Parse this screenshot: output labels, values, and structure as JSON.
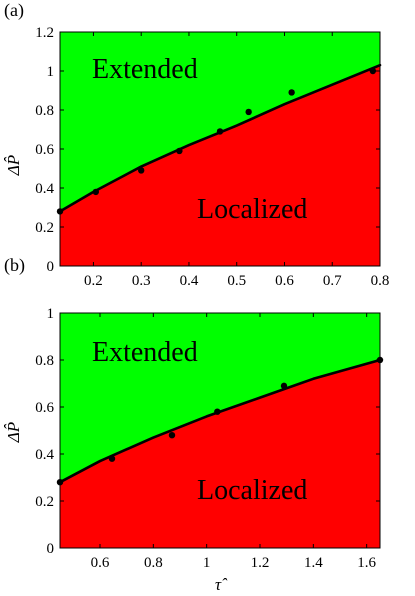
{
  "chart_data": [
    {
      "type": "area",
      "panel_label": "(a)",
      "xlim": [
        0.13,
        0.8
      ],
      "ylim": [
        0,
        1.2
      ],
      "x_ticks": [
        "0.2",
        "0.3",
        "0.4",
        "0.5",
        "0.6",
        "0.7",
        "0.8"
      ],
      "x_tick_values": [
        0.2,
        0.3,
        0.4,
        0.5,
        0.6,
        0.7,
        0.8
      ],
      "y_ticks": [
        "0",
        "0.2",
        "0.4",
        "0.6",
        "0.8",
        "1",
        "1.2"
      ],
      "y_tick_values": [
        0,
        0.2,
        0.4,
        0.6,
        0.8,
        1.0,
        1.2
      ],
      "xlabel": "",
      "ylabel": "ΔP̂",
      "regions": [
        {
          "label": "Extended",
          "color": "#00ff00"
        },
        {
          "label": "Localized",
          "color": "#ff0000"
        }
      ],
      "boundary_curve": {
        "x": [
          0.13,
          0.2,
          0.3,
          0.4,
          0.5,
          0.6,
          0.7,
          0.8
        ],
        "y": [
          0.28,
          0.38,
          0.51,
          0.62,
          0.72,
          0.83,
          0.93,
          1.03
        ]
      },
      "points": {
        "x": [
          0.13,
          0.205,
          0.3,
          0.38,
          0.465,
          0.525,
          0.615,
          0.785
        ],
        "y": [
          0.28,
          0.38,
          0.49,
          0.59,
          0.69,
          0.79,
          0.89,
          1.0
        ]
      },
      "grid": false
    },
    {
      "type": "area",
      "panel_label": "(b)",
      "xlim": [
        0.45,
        1.65
      ],
      "ylim": [
        0,
        1
      ],
      "x_ticks": [
        "0.6",
        "0.8",
        "1",
        "1.2",
        "1.4",
        "1.6"
      ],
      "x_tick_values": [
        0.6,
        0.8,
        1.0,
        1.2,
        1.4,
        1.6
      ],
      "y_ticks": [
        "0",
        "0.2",
        "0.4",
        "0.6",
        "0.8",
        "1"
      ],
      "y_tick_values": [
        0,
        0.2,
        0.4,
        0.6,
        0.8,
        1.0
      ],
      "xlabel": "τ̂",
      "ylabel": "ΔP̂",
      "regions": [
        {
          "label": "Extended",
          "color": "#00ff00"
        },
        {
          "label": "Localized",
          "color": "#ff0000"
        }
      ],
      "boundary_curve": {
        "x": [
          0.45,
          0.6,
          0.8,
          1.0,
          1.2,
          1.4,
          1.65
        ],
        "y": [
          0.28,
          0.37,
          0.47,
          0.56,
          0.64,
          0.72,
          0.8
        ]
      },
      "points": {
        "x": [
          0.45,
          0.645,
          0.87,
          1.04,
          1.29,
          1.65
        ],
        "y": [
          0.28,
          0.38,
          0.48,
          0.58,
          0.69,
          0.8
        ]
      },
      "grid": false
    }
  ]
}
